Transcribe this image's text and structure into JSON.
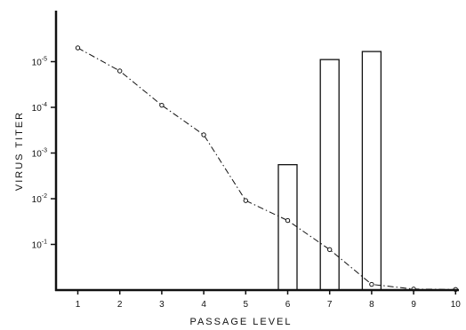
{
  "chart_data": {
    "type": "bar",
    "title": "",
    "xlabel": "PASSAGE LEVEL",
    "ylabel": "VIRUS TITER",
    "x_ticks": [
      "1",
      "2",
      "3",
      "4",
      "5",
      "6",
      "7",
      "8",
      "9",
      "10"
    ],
    "y_ticks": [
      {
        "base": "10",
        "exp": "-1"
      },
      {
        "base": "10",
        "exp": "-2"
      },
      {
        "base": "10",
        "exp": "-3"
      },
      {
        "base": "10",
        "exp": "-4"
      },
      {
        "base": "10",
        "exp": "-5"
      }
    ],
    "y_scale": "log",
    "ylim": [
      1,
      1e-06
    ],
    "grid": false,
    "line_series": {
      "style": "dash-dot with open circles",
      "points": [
        {
          "x": 1,
          "y": 5e-06
        },
        {
          "x": 2,
          "y": 1.6e-05
        },
        {
          "x": 3,
          "y": 9e-05
        },
        {
          "x": 4,
          "y": 0.0004
        },
        {
          "x": 5,
          "y": 0.011
        },
        {
          "x": 6,
          "y": 0.03
        },
        {
          "x": 7,
          "y": 0.13
        },
        {
          "x": 8,
          "y": 0.75
        },
        {
          "x": 9,
          "y": 0.95
        },
        {
          "x": 10,
          "y": 0.97
        }
      ]
    },
    "bar_series": {
      "bars": [
        {
          "x": 6,
          "y": 0.0018
        },
        {
          "x": 7,
          "y": 9e-06
        },
        {
          "x": 8,
          "y": 6e-06
        }
      ]
    }
  }
}
